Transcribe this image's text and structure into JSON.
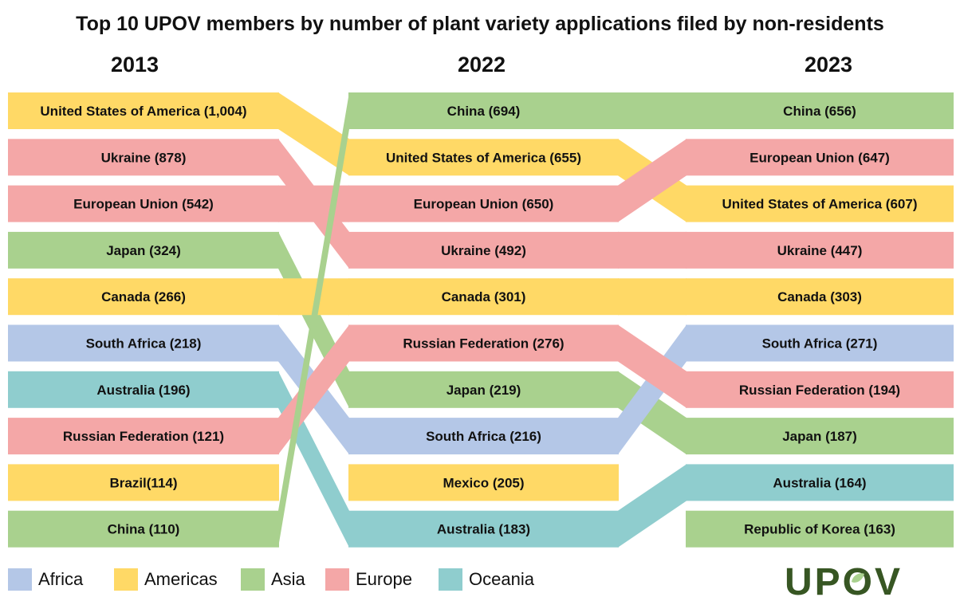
{
  "title": "Top 10 UPOV members by number of plant variety applications filed by non-residents",
  "colors": {
    "Africa": "#b4c7e7",
    "Americas": "#ffd966",
    "Asia": "#a9d18e",
    "Europe": "#f4a7a7",
    "Oceania": "#8fcdce"
  },
  "legend": [
    {
      "region": "Africa",
      "label": "Africa"
    },
    {
      "region": "Americas",
      "label": "Americas"
    },
    {
      "region": "Asia",
      "label": "Asia"
    },
    {
      "region": "Europe",
      "label": "Europe"
    },
    {
      "region": "Oceania",
      "label": "Oceania"
    }
  ],
  "logo": {
    "text": "UPOV",
    "color": "#375623",
    "leaf_color": "#a9d18e"
  },
  "chart_data": {
    "type": "bump",
    "years": [
      "2013",
      "2022",
      "2023"
    ],
    "rankings": {
      "2013": [
        {
          "member": "United States of America",
          "value": 1004,
          "label": "United States of America  (1,004)",
          "region": "Americas"
        },
        {
          "member": "Ukraine",
          "value": 878,
          "label": "Ukraine (878)",
          "region": "Europe"
        },
        {
          "member": "European Union",
          "value": 542,
          "label": "European Union (542)",
          "region": "Europe"
        },
        {
          "member": "Japan",
          "value": 324,
          "label": "Japan (324)",
          "region": "Asia"
        },
        {
          "member": "Canada",
          "value": 266,
          "label": "Canada (266)",
          "region": "Americas"
        },
        {
          "member": "South Africa",
          "value": 218,
          "label": "South Africa (218)",
          "region": "Africa"
        },
        {
          "member": "Australia",
          "value": 196,
          "label": "Australia (196)",
          "region": "Oceania"
        },
        {
          "member": "Russian Federation",
          "value": 121,
          "label": "Russian Federation (121)",
          "region": "Europe"
        },
        {
          "member": "Brazil",
          "value": 114,
          "label": "Brazil(114)",
          "region": "Americas"
        },
        {
          "member": "China",
          "value": 110,
          "label": "China (110)",
          "region": "Asia"
        }
      ],
      "2022": [
        {
          "member": "China",
          "value": 694,
          "label": "China (694)",
          "region": "Asia"
        },
        {
          "member": "United States of America",
          "value": 655,
          "label": "United States of America (655)",
          "region": "Americas"
        },
        {
          "member": "European Union",
          "value": 650,
          "label": "European Union (650)",
          "region": "Europe"
        },
        {
          "member": "Ukraine",
          "value": 492,
          "label": "Ukraine (492)",
          "region": "Europe"
        },
        {
          "member": "Canada",
          "value": 301,
          "label": "Canada (301)",
          "region": "Americas"
        },
        {
          "member": "Russian Federation",
          "value": 276,
          "label": "Russian Federation  (276)",
          "region": "Europe"
        },
        {
          "member": "Japan",
          "value": 219,
          "label": "Japan (219)",
          "region": "Asia"
        },
        {
          "member": "South Africa",
          "value": 216,
          "label": "South Africa (216)",
          "region": "Africa"
        },
        {
          "member": "Mexico",
          "value": 205,
          "label": "Mexico (205)",
          "region": "Americas"
        },
        {
          "member": "Australia",
          "value": 183,
          "label": "Australia (183)",
          "region": "Oceania"
        }
      ],
      "2023": [
        {
          "member": "China",
          "value": 656,
          "label": "China (656)",
          "region": "Asia"
        },
        {
          "member": "European Union",
          "value": 647,
          "label": "European Union (647)",
          "region": "Europe"
        },
        {
          "member": "United States of America",
          "value": 607,
          "label": "United States of America (607)",
          "region": "Americas"
        },
        {
          "member": "Ukraine",
          "value": 447,
          "label": "Ukraine (447)",
          "region": "Europe"
        },
        {
          "member": "Canada",
          "value": 303,
          "label": "Canada (303)",
          "region": "Americas"
        },
        {
          "member": "South Africa",
          "value": 271,
          "label": "South Africa (271)",
          "region": "Africa"
        },
        {
          "member": "Russian Federation",
          "value": 194,
          "label": "Russian Federation (194)",
          "region": "Europe"
        },
        {
          "member": "Japan",
          "value": 187,
          "label": "Japan (187)",
          "region": "Asia"
        },
        {
          "member": "Australia",
          "value": 164,
          "label": "Australia (164)",
          "region": "Oceania"
        },
        {
          "member": "Republic of Korea",
          "value": 163,
          "label": "Republic of Korea (163)",
          "region": "Asia"
        }
      ]
    }
  }
}
